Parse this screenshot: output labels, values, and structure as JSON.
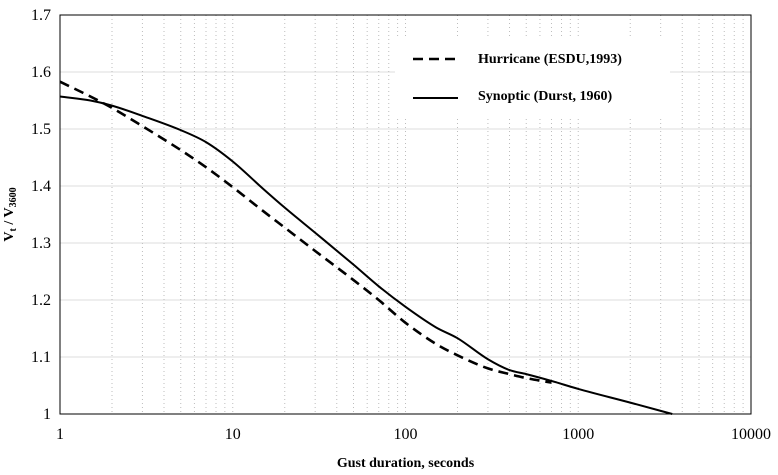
{
  "chart_data": {
    "type": "line",
    "xscale": "log",
    "xlim": [
      1,
      10000
    ],
    "ylim": [
      1,
      1.7
    ],
    "xticks": [
      1,
      10,
      100,
      1000,
      10000
    ],
    "xtick_labels": [
      "1",
      "10",
      "100",
      "1000",
      "10000"
    ],
    "yticks": [
      1,
      1.1,
      1.2,
      1.3,
      1.4,
      1.5,
      1.6,
      1.7
    ],
    "ytick_labels": [
      "1",
      "1.1",
      "1.2",
      "1.3",
      "1.4",
      "1.5",
      "1.6",
      "1.7"
    ],
    "xlabel": "Gust duration, seconds",
    "ylabel": {
      "main": "V",
      "sub_t": "t",
      "slash": " / V",
      "sub_3600": "3600"
    },
    "grid": "vertical dotted at minor log ticks, horizontal at major y ticks",
    "legend_position": "top-right",
    "series": [
      {
        "name": "Hurricane (ESDU,1993)",
        "style": "dashed",
        "color": "#000000",
        "x": [
          1,
          1.5,
          2,
          3,
          5,
          7,
          10,
          15,
          20,
          30,
          50,
          70,
          100,
          150,
          200,
          300,
          400,
          500,
          700
        ],
        "y": [
          1.583,
          1.557,
          1.537,
          1.505,
          1.463,
          1.433,
          1.398,
          1.356,
          1.327,
          1.286,
          1.235,
          1.2,
          1.16,
          1.123,
          1.103,
          1.08,
          1.07,
          1.063,
          1.055
        ]
      },
      {
        "name": "Synoptic (Durst, 1960)",
        "style": "solid",
        "color": "#000000",
        "x": [
          1,
          1.5,
          2,
          3,
          5,
          7,
          10,
          15,
          20,
          30,
          50,
          70,
          100,
          150,
          200,
          300,
          400,
          500,
          700,
          1000,
          2000,
          3500
        ],
        "y": [
          1.557,
          1.55,
          1.541,
          1.523,
          1.498,
          1.477,
          1.443,
          1.395,
          1.362,
          1.318,
          1.262,
          1.224,
          1.188,
          1.152,
          1.133,
          1.096,
          1.077,
          1.07,
          1.058,
          1.044,
          1.02,
          1.0
        ]
      }
    ]
  }
}
